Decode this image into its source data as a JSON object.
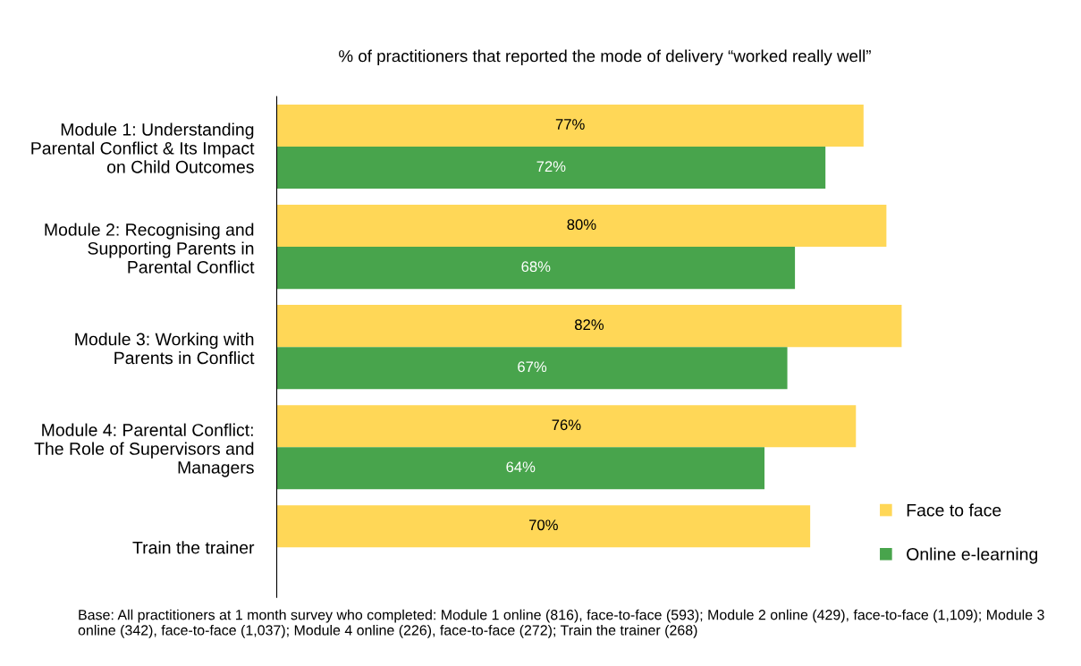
{
  "chart_data": {
    "type": "bar",
    "orientation": "horizontal",
    "title": "% of practitioners that reported the mode of delivery “worked really well”",
    "categories": [
      "Module 1: Understanding\nParental Conflict & Its Impact\non Child Outcomes",
      "Module 2: Recognising and\nSupporting Parents in\nParental Conflict",
      "Module 3: Working with\nParents in Conflict",
      "Module 4: Parental Conflict:\nThe Role of Supervisors and\nManagers",
      "Train the trainer"
    ],
    "series": [
      {
        "name": "Face to face",
        "color": "#ffd757",
        "values": [
          77,
          80,
          82,
          76,
          70
        ],
        "value_labels": [
          "77%",
          "80%",
          "82%",
          "76%",
          "70%"
        ]
      },
      {
        "name": "Online e-learning",
        "color": "#48a44c",
        "values": [
          72,
          68,
          67,
          64,
          null
        ],
        "value_labels": [
          "72%",
          "68%",
          "67%",
          "64%",
          null
        ]
      }
    ],
    "tick_labels": "y",
    "legend": "bottom right",
    "grid": false,
    "annotations": [
      "Base: All practitioners at 1 month survey who completed: Module 1 online (816), face-to-face (593); Module 2 online (429), face-to-face (1,109); Module 3 online (342), face-to-face (1,037); Module 4 online (226), face-to-face (272); Train the trainer (268)"
    ]
  }
}
